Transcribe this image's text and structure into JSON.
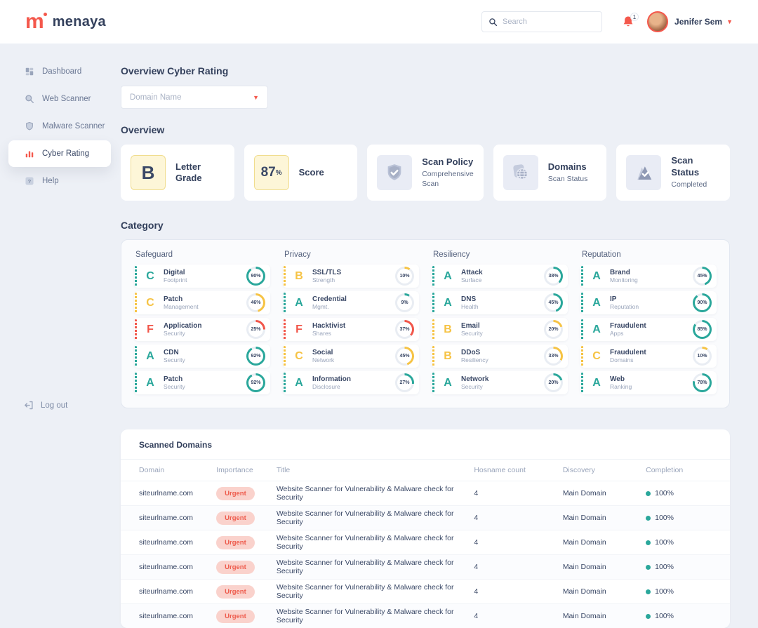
{
  "palette": {
    "brand_coral": "#f4584c",
    "navy": "#33405c",
    "teal": "#2aa79b",
    "yellow": "#f6c344",
    "red": "#f1564a",
    "urgent_badge_bg": "#fad2cc",
    "urgent_badge_text": "#ee5c4d",
    "tile_yellow_bg": "#fdf6d8",
    "tile_gray_bg": "#e9ecf5"
  },
  "header": {
    "brand": "menaya",
    "search_placeholder": "Search",
    "notification_count": "1",
    "user_name": "Jenifer Sem"
  },
  "sidebar": {
    "items": [
      {
        "label": "Dashboard",
        "icon": "dashboard-icon",
        "active": false
      },
      {
        "label": "Web Scanner",
        "icon": "web-scanner-icon",
        "active": false
      },
      {
        "label": "Malware Scanner",
        "icon": "malware-scanner-icon",
        "active": false
      },
      {
        "label": "Cyber Rating",
        "icon": "cyber-rating-icon",
        "active": true
      },
      {
        "label": "Help",
        "icon": "help-icon",
        "active": false
      }
    ],
    "logout_label": "Log out"
  },
  "page": {
    "title": "Overview Cyber Rating",
    "domain_placeholder": "Domain Name",
    "overview_heading": "Overview",
    "category_heading": "Category"
  },
  "overview_cards": [
    {
      "kind": "grade",
      "value": "B",
      "title": "Letter Grade"
    },
    {
      "kind": "score",
      "value": "87",
      "unit": "%",
      "title": "Score"
    },
    {
      "kind": "icon",
      "icon": "shield-check-icon",
      "title": "Scan Policy",
      "subtitle": "Comprehensive Scan"
    },
    {
      "kind": "icon",
      "icon": "globe-icon",
      "title": "Domains",
      "subtitle": "Scan Status"
    },
    {
      "kind": "icon",
      "icon": "mountain-check-icon",
      "title": "Scan Status",
      "subtitle": "Completed"
    }
  ],
  "categories": [
    {
      "name": "Safeguard",
      "items": [
        {
          "grade": "C",
          "color": "teal",
          "title": "Digital",
          "subtitle": "Footprint",
          "percent": 90
        },
        {
          "grade": "C",
          "color": "yellow",
          "title": "Patch",
          "subtitle": "Management",
          "percent": 46
        },
        {
          "grade": "F",
          "color": "red",
          "title": "Application",
          "subtitle": "Security",
          "percent": 25
        },
        {
          "grade": "A",
          "color": "teal",
          "title": "CDN",
          "subtitle": "Security",
          "percent": 92
        },
        {
          "grade": "A",
          "color": "teal",
          "title": "Patch",
          "subtitle": "Security",
          "percent": 92
        }
      ]
    },
    {
      "name": "Privacy",
      "items": [
        {
          "grade": "B",
          "color": "yellow",
          "title": "SSL/TLS",
          "subtitle": "Strength",
          "percent": 10
        },
        {
          "grade": "A",
          "color": "teal",
          "title": "Credential",
          "subtitle": "Mgmt.",
          "percent": 9
        },
        {
          "grade": "F",
          "color": "red",
          "title": "Hacktivist",
          "subtitle": "Shares",
          "percent": 37
        },
        {
          "grade": "C",
          "color": "yellow",
          "title": "Social",
          "subtitle": "Network",
          "percent": 45
        },
        {
          "grade": "A",
          "color": "teal",
          "title": "Information",
          "subtitle": "Disclosure",
          "percent": 27
        }
      ]
    },
    {
      "name": "Resiliency",
      "items": [
        {
          "grade": "A",
          "color": "teal",
          "title": "Attack",
          "subtitle": "Surface",
          "percent": 38
        },
        {
          "grade": "A",
          "color": "teal",
          "title": "DNS",
          "subtitle": "Health",
          "percent": 45
        },
        {
          "grade": "B",
          "color": "yellow",
          "title": "Email",
          "subtitle": "Security",
          "percent": 20
        },
        {
          "grade": "B",
          "color": "yellow",
          "title": "DDoS",
          "subtitle": "Resiliency",
          "percent": 33
        },
        {
          "grade": "A",
          "color": "teal",
          "title": "Network",
          "subtitle": "Security",
          "percent": 20
        }
      ]
    },
    {
      "name": "Reputation",
      "items": [
        {
          "grade": "A",
          "color": "teal",
          "title": "Brand",
          "subtitle": "Monitoring",
          "percent": 45
        },
        {
          "grade": "A",
          "color": "teal",
          "title": "IP",
          "subtitle": "Reputation",
          "percent": 90
        },
        {
          "grade": "A",
          "color": "teal",
          "title": "Fraudulent",
          "subtitle": "Apps",
          "percent": 85
        },
        {
          "grade": "C",
          "color": "yellow",
          "title": "Fraudulent",
          "subtitle": "Domains",
          "percent": 10
        },
        {
          "grade": "A",
          "color": "teal",
          "title": "Web",
          "subtitle": "Ranking",
          "percent": 78
        }
      ]
    }
  ],
  "scanned_domains": {
    "title": "Scanned Domains",
    "columns": [
      "Domain",
      "Importance",
      "Title",
      "Hosname count",
      "Discovery",
      "Completion"
    ],
    "rows": [
      {
        "domain": "siteurlname.com",
        "importance": "Urgent",
        "title": "Website Scanner for Vulnerability & Malware check for Security",
        "hostname_count": "4",
        "discovery": "Main Domain",
        "completion": "100%"
      },
      {
        "domain": "siteurlname.com",
        "importance": "Urgent",
        "title": "Website Scanner for Vulnerability & Malware check for Security",
        "hostname_count": "4",
        "discovery": "Main Domain",
        "completion": "100%"
      },
      {
        "domain": "siteurlname.com",
        "importance": "Urgent",
        "title": "Website Scanner for Vulnerability & Malware check for Security",
        "hostname_count": "4",
        "discovery": "Main Domain",
        "completion": "100%"
      },
      {
        "domain": "siteurlname.com",
        "importance": "Urgent",
        "title": "Website Scanner for Vulnerability & Malware check for Security",
        "hostname_count": "4",
        "discovery": "Main Domain",
        "completion": "100%"
      },
      {
        "domain": "siteurlname.com",
        "importance": "Urgent",
        "title": "Website Scanner for Vulnerability & Malware check for Security",
        "hostname_count": "4",
        "discovery": "Main Domain",
        "completion": "100%"
      },
      {
        "domain": "siteurlname.com",
        "importance": "Urgent",
        "title": "Website Scanner for Vulnerability & Malware check for Security",
        "hostname_count": "4",
        "discovery": "Main Domain",
        "completion": "100%"
      }
    ]
  }
}
